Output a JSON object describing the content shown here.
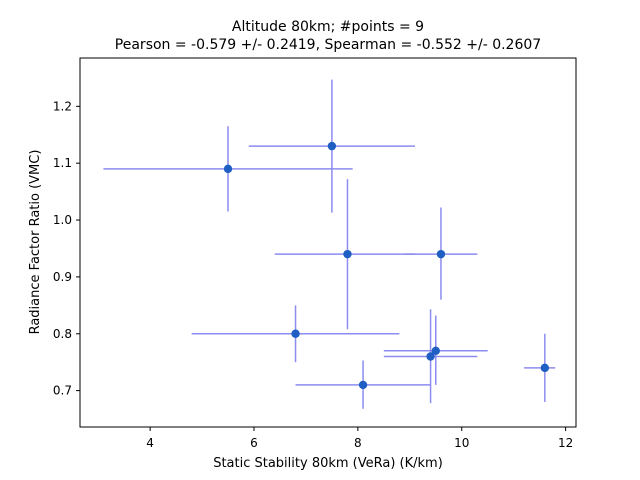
{
  "chart_data": {
    "type": "scatter",
    "title_line1": "Altitude 80km;  #points =  9",
    "title_line2": "Pearson = -0.579 +/-  0.2419, Spearman = -0.552 +/-  0.2607",
    "xlabel": "Static Stability 80km (VeRa) (K/km)",
    "ylabel": "Radiance Factor Ratio (VMC)",
    "xlim": [
      2.65,
      12.2
    ],
    "ylim": [
      0.636,
      1.285
    ],
    "xticks": [
      4,
      6,
      8,
      10,
      12
    ],
    "xtick_labels": [
      "4",
      "6",
      "8",
      "10",
      "12"
    ],
    "yticks": [
      0.7,
      0.8,
      0.9,
      1.0,
      1.1,
      1.2
    ],
    "ytick_labels": [
      "0.7",
      "0.8",
      "0.9",
      "1.0",
      "1.1",
      "1.2"
    ],
    "grid": false,
    "marker_color": "#1f5fc4",
    "errorbar_color": "#8c8cf0",
    "points": [
      {
        "x": 5.5,
        "y": 1.09,
        "x_lo": 3.1,
        "x_hi": 7.9,
        "y_lo": 1.015,
        "y_hi": 1.165
      },
      {
        "x": 7.5,
        "y": 1.13,
        "x_lo": 5.9,
        "x_hi": 9.1,
        "y_lo": 1.013,
        "y_hi": 1.247
      },
      {
        "x": 7.8,
        "y": 0.94,
        "x_lo": 6.4,
        "x_hi": 9.1,
        "y_lo": 0.808,
        "y_hi": 1.072
      },
      {
        "x": 9.6,
        "y": 0.94,
        "x_lo": 8.9,
        "x_hi": 10.3,
        "y_lo": 0.86,
        "y_hi": 1.022
      },
      {
        "x": 6.8,
        "y": 0.8,
        "x_lo": 4.8,
        "x_hi": 8.8,
        "y_lo": 0.75,
        "y_hi": 0.85
      },
      {
        "x": 9.5,
        "y": 0.77,
        "x_lo": 8.5,
        "x_hi": 10.5,
        "y_lo": 0.71,
        "y_hi": 0.832
      },
      {
        "x": 9.4,
        "y": 0.76,
        "x_lo": 8.5,
        "x_hi": 10.3,
        "y_lo": 0.678,
        "y_hi": 0.843
      },
      {
        "x": 11.6,
        "y": 0.74,
        "x_lo": 11.2,
        "x_hi": 11.8,
        "y_lo": 0.68,
        "y_hi": 0.8
      },
      {
        "x": 8.1,
        "y": 0.71,
        "x_lo": 6.8,
        "x_hi": 9.4,
        "y_lo": 0.668,
        "y_hi": 0.753
      }
    ]
  }
}
